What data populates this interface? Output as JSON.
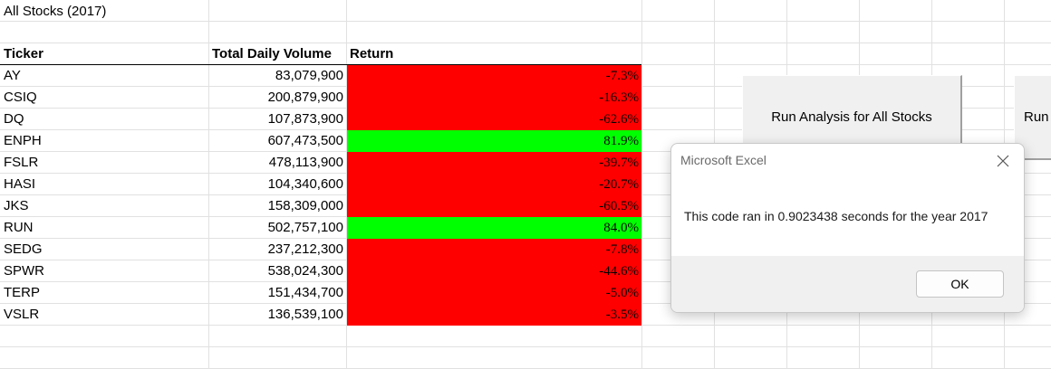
{
  "sheet": {
    "title": "All Stocks (2017)",
    "headers": {
      "ticker": "Ticker",
      "volume": "Total Daily Volume",
      "return": "Return"
    },
    "rows": [
      {
        "ticker": "AY",
        "volume": "83,079,900",
        "return": "-7.3%",
        "status": "negative"
      },
      {
        "ticker": "CSIQ",
        "volume": "200,879,900",
        "return": "-16.3%",
        "status": "negative"
      },
      {
        "ticker": "DQ",
        "volume": "107,873,900",
        "return": "-62.6%",
        "status": "negative"
      },
      {
        "ticker": "ENPH",
        "volume": "607,473,500",
        "return": "81.9%",
        "status": "positive"
      },
      {
        "ticker": "FSLR",
        "volume": "478,113,900",
        "return": "-39.7%",
        "status": "negative"
      },
      {
        "ticker": "HASI",
        "volume": "104,340,600",
        "return": "-20.7%",
        "status": "negative"
      },
      {
        "ticker": "JKS",
        "volume": "158,309,000",
        "return": "-60.5%",
        "status": "negative"
      },
      {
        "ticker": "RUN",
        "volume": "502,757,100",
        "return": "84.0%",
        "status": "positive"
      },
      {
        "ticker": "SEDG",
        "volume": "237,212,300",
        "return": "-7.8%",
        "status": "negative"
      },
      {
        "ticker": "SPWR",
        "volume": "538,024,300",
        "return": "-44.6%",
        "status": "negative"
      },
      {
        "ticker": "TERP",
        "volume": "151,434,700",
        "return": "-5.0%",
        "status": "negative"
      },
      {
        "ticker": "VSLR",
        "volume": "136,539,100",
        "return": "-3.5%",
        "status": "negative"
      }
    ]
  },
  "colors": {
    "negative": "#ff0000",
    "positive": "#00ff00",
    "gridline": "#e1e1e1"
  },
  "buttons": {
    "run_all": "Run Analysis for All Stocks",
    "run_partial": "Run"
  },
  "dialog": {
    "title": "Microsoft Excel",
    "message": "This code ran in 0.9023438 seconds for the year 2017",
    "ok": "OK",
    "close_icon": "close-icon"
  }
}
